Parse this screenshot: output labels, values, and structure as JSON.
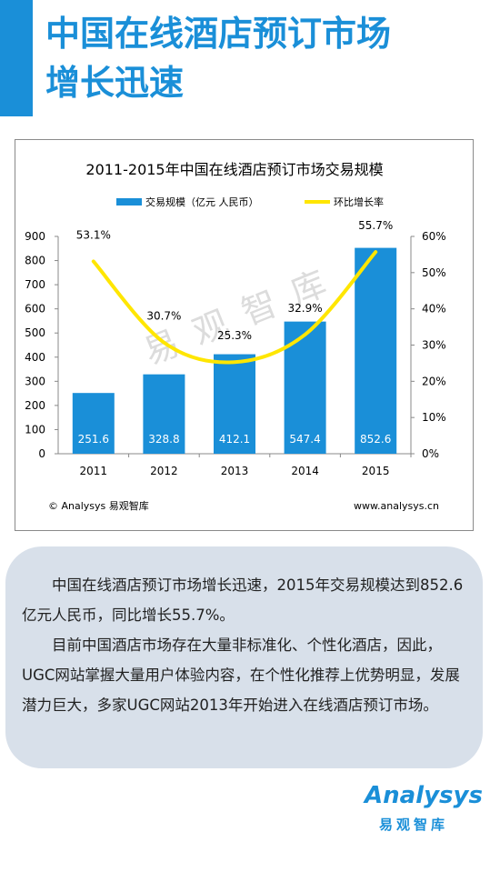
{
  "page": {
    "headline_line1": "中国在线酒店预订市场",
    "headline_line2": "增长迅速",
    "paragraph1": "中国在线酒店预订市场增长迅速，2015年交易规模达到852.6亿元人民币，同比增长55.7%。",
    "paragraph2": "目前中国酒店市场存在大量非标准化、个性化酒店，因此，UGC网站掌握大量用户体验内容，在个性化推荐上优势明显，发展潜力巨大，多家UGC网站2013年开始进入在线酒店预订市场。",
    "logo_word": "Analysys",
    "logo_sub": "易观智库"
  },
  "chart_data": {
    "type": "bar",
    "title": "2011-2015年中国在线酒店预订市场交易规模",
    "categories": [
      "2011",
      "2012",
      "2013",
      "2014",
      "2015"
    ],
    "series": [
      {
        "name": "交易规模（亿元 人民币）",
        "type": "bar",
        "axis": "left",
        "values": [
          251.6,
          328.8,
          412.1,
          547.4,
          852.6
        ],
        "labels": [
          "251.6",
          "328.8",
          "412.1",
          "547.4",
          "852.6"
        ],
        "color": "#1a8fd8"
      },
      {
        "name": "环比增长率",
        "type": "line",
        "axis": "right",
        "values": [
          53.1,
          30.7,
          25.3,
          32.9,
          55.7
        ],
        "labels": [
          "53.1%",
          "30.7%",
          "25.3%",
          "32.9%",
          "55.7%"
        ],
        "color": "#ffe600"
      }
    ],
    "y_left": {
      "min": 0,
      "max": 900,
      "ticks": [
        "0",
        "100",
        "200",
        "300",
        "400",
        "500",
        "600",
        "700",
        "800",
        "900"
      ]
    },
    "y_right": {
      "min": 0,
      "max": 60,
      "ticks": [
        "0%",
        "10%",
        "20%",
        "30%",
        "40%",
        "50%",
        "60%"
      ]
    },
    "watermark": "易观智库",
    "source": "© Analysys 易观智库",
    "website": "www.analysys.cn",
    "legend_position": "top",
    "grid": false
  }
}
